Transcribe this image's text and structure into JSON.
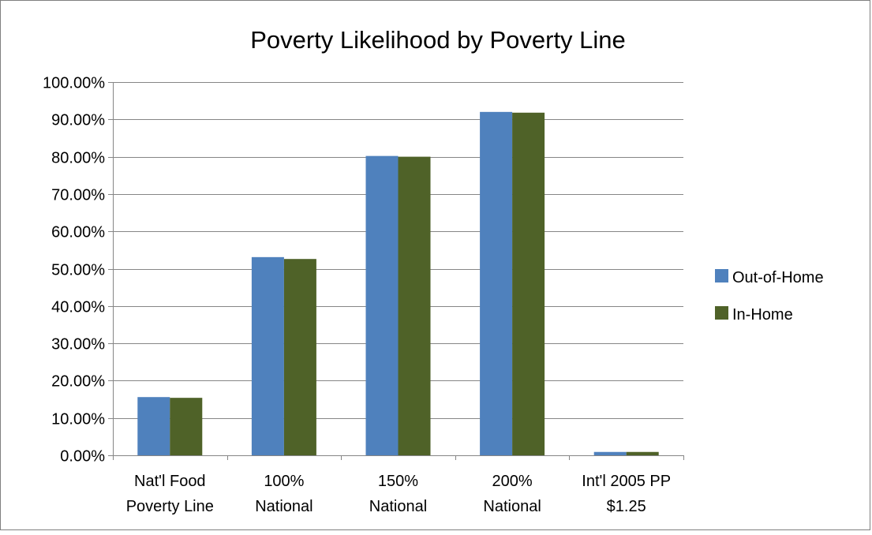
{
  "chart_data": {
    "type": "bar",
    "title": "Poverty Likelihood by Poverty Line",
    "categories": [
      [
        "Nat'l Food",
        "Poverty Line"
      ],
      [
        "100%",
        "National"
      ],
      [
        "150%",
        "National"
      ],
      [
        "200%",
        "National"
      ],
      [
        "Int'l 2005 PP",
        "$1.25"
      ]
    ],
    "series": [
      {
        "name": "Out-of-Home",
        "color": "#4F81BD",
        "values": [
          15.6,
          53.1,
          80.2,
          92.0,
          0.9
        ]
      },
      {
        "name": "In-Home",
        "color": "#4F6228",
        "values": [
          15.4,
          52.6,
          80.0,
          91.8,
          0.9
        ]
      }
    ],
    "ylim": [
      0,
      100
    ],
    "y_ticks": [
      "0.00%",
      "10.00%",
      "20.00%",
      "30.00%",
      "40.00%",
      "50.00%",
      "60.00%",
      "70.00%",
      "80.00%",
      "90.00%",
      "100.00%"
    ],
    "grid": true,
    "legend_position": "right"
  }
}
